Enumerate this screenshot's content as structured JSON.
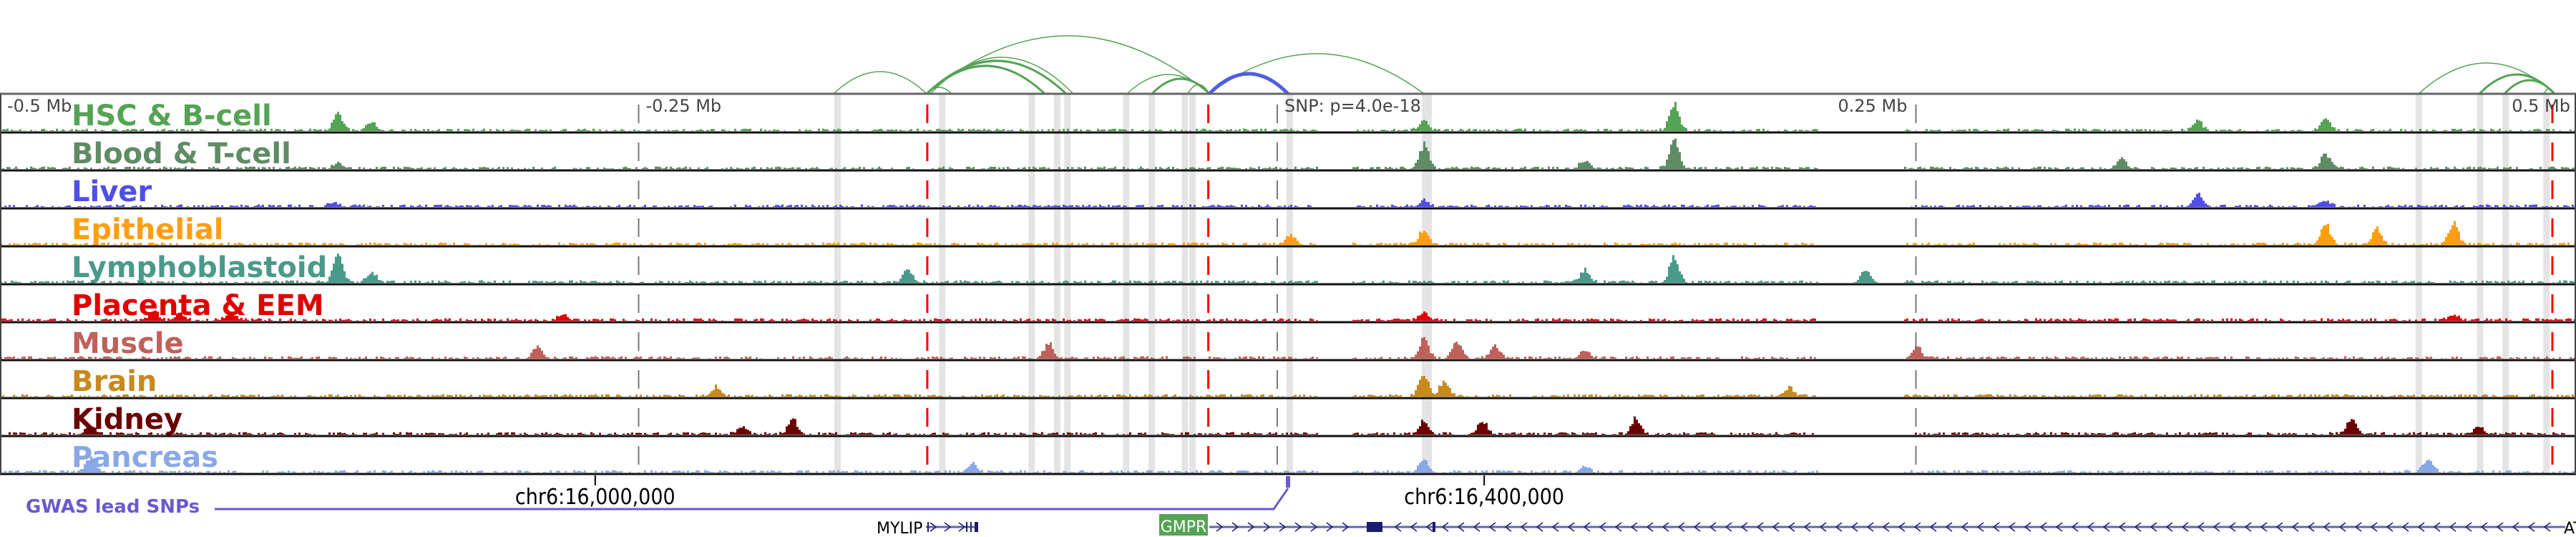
{
  "axis": {
    "labels": [
      {
        "text": "-0.5 Mb",
        "pos": -0.5
      },
      {
        "text": "-0.25 Mb",
        "pos": -0.25
      },
      {
        "text": "SNP: p=4.0e-18",
        "pos": 0
      },
      {
        "text": "0.25 Mb",
        "pos": 0.25
      },
      {
        "text": "0.5 Mb",
        "pos": 0.5
      }
    ]
  },
  "colors": {
    "highlight": "#e4e4e4",
    "snp_line": "#ff0000",
    "arc": "#55a355",
    "arc_strong": "#4f5fe0",
    "gwas": "#6a5acd",
    "gene": "#1a1a6e",
    "gene_highlight": "#55a355"
  },
  "tracks": [
    {
      "name": "HSC & B-cell",
      "color": "#55a355",
      "peaks": [
        [
          -0.368,
          0.6
        ],
        [
          -0.355,
          0.3
        ],
        [
          0.057,
          0.35
        ],
        [
          0.155,
          0.9
        ],
        [
          0.41,
          0.45
        ],
        [
          0.36,
          0.3
        ]
      ]
    },
    {
      "name": "Blood & T-cell",
      "color": "#5f8b65",
      "peaks": [
        [
          -0.368,
          0.2
        ],
        [
          0.057,
          0.8
        ],
        [
          0.155,
          1.0
        ],
        [
          0.12,
          0.3
        ],
        [
          0.33,
          0.35
        ],
        [
          0.41,
          0.5
        ]
      ]
    },
    {
      "name": "Liver",
      "color": "#4f4fe6",
      "peaks": [
        [
          -0.37,
          0.15
        ],
        [
          0.057,
          0.2
        ],
        [
          0.36,
          0.4
        ],
        [
          0.41,
          0.2
        ]
      ]
    },
    {
      "name": "Epithelial",
      "color": "#ff9e12",
      "peaks": [
        [
          0.057,
          0.5
        ],
        [
          0.005,
          0.35
        ],
        [
          0.41,
          0.7
        ],
        [
          0.46,
          0.75
        ],
        [
          0.43,
          0.5
        ]
      ]
    },
    {
      "name": "Lymphoblastoid",
      "color": "#4a9a89",
      "peaks": [
        [
          -0.368,
          0.95
        ],
        [
          -0.355,
          0.35
        ],
        [
          -0.145,
          0.5
        ],
        [
          0.155,
          0.9
        ],
        [
          0.12,
          0.45
        ],
        [
          0.23,
          0.5
        ]
      ]
    },
    {
      "name": "Placenta & EEM",
      "color": "#e00000",
      "peaks": [
        [
          -0.44,
          0.3
        ],
        [
          -0.43,
          0.25
        ],
        [
          -0.41,
          0.3
        ],
        [
          -0.28,
          0.2
        ],
        [
          0.057,
          0.3
        ],
        [
          0.46,
          0.2
        ]
      ]
    },
    {
      "name": "Muscle",
      "color": "#c0605a",
      "peaks": [
        [
          -0.29,
          0.4
        ],
        [
          -0.09,
          0.5
        ],
        [
          0.057,
          0.7
        ],
        [
          0.07,
          0.6
        ],
        [
          0.085,
          0.45
        ],
        [
          0.12,
          0.3
        ],
        [
          0.25,
          0.4
        ]
      ]
    },
    {
      "name": "Brain",
      "color": "#c88a1e",
      "peaks": [
        [
          0.057,
          0.85
        ],
        [
          0.065,
          0.5
        ],
        [
          -0.22,
          0.3
        ],
        [
          0.2,
          0.3
        ]
      ]
    },
    {
      "name": "Kidney",
      "color": "#6b0000",
      "peaks": [
        [
          -0.465,
          0.3
        ],
        [
          -0.21,
          0.25
        ],
        [
          -0.19,
          0.5
        ],
        [
          0.057,
          0.5
        ],
        [
          0.08,
          0.45
        ],
        [
          0.14,
          0.5
        ],
        [
          0.42,
          0.5
        ],
        [
          0.47,
          0.3
        ]
      ]
    },
    {
      "name": "Pancreas",
      "color": "#8aa8e6",
      "peaks": [
        [
          -0.465,
          0.5
        ],
        [
          -0.12,
          0.3
        ],
        [
          0.057,
          0.4
        ],
        [
          0.12,
          0.2
        ],
        [
          0.45,
          0.45
        ]
      ]
    }
  ],
  "highlights": [
    -0.172,
    -0.131,
    -0.096,
    -0.086,
    -0.082,
    -0.059,
    -0.049,
    -0.036,
    -0.033,
    0.005,
    0.058,
    0.447,
    0.471,
    0.481,
    0.497
  ],
  "snp_lines": [
    -0.137,
    -0.027,
    0.5
  ],
  "coords": [
    {
      "text": "chr6:16,000,000",
      "tick": -0.267
    },
    {
      "text": "chr6:16,400,000",
      "tick": 0.081
    }
  ],
  "gwas_label": "GWAS lead SNPs",
  "genes": [
    {
      "name": "MYLIP",
      "highlighted": false
    },
    {
      "name": "GMPR",
      "highlighted": true
    },
    {
      "name": "AT",
      "highlighted": false
    }
  ]
}
